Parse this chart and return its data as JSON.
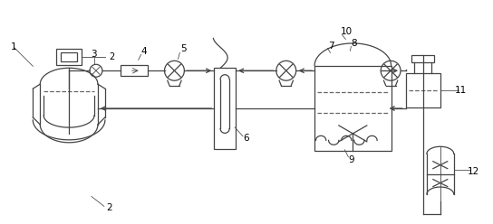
{
  "background_color": "#ffffff",
  "line_color": "#444444",
  "dashed_color": "#666666",
  "fig_width": 5.44,
  "fig_height": 2.48,
  "dpi": 100
}
